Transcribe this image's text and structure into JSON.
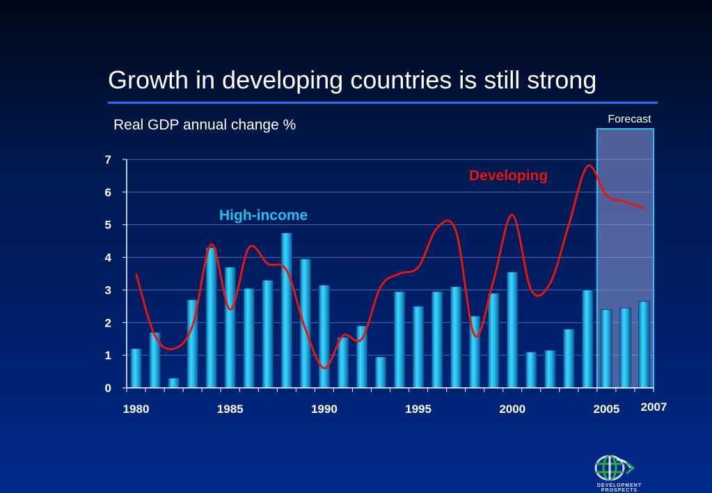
{
  "header": {
    "title": "Growth in developing countries is still strong"
  },
  "chart_data": {
    "type": "bar",
    "title": "Growth in developing countries is still strong",
    "ylabel": "Real GDP annual change %",
    "xlabel": "",
    "ylim": [
      0,
      7
    ],
    "yticks": [
      "0",
      "1",
      "2",
      "3",
      "4",
      "5",
      "6",
      "7"
    ],
    "x": [
      1980,
      1981,
      1982,
      1983,
      1984,
      1985,
      1986,
      1987,
      1988,
      1989,
      1990,
      1991,
      1992,
      1993,
      1994,
      1995,
      1996,
      1997,
      1998,
      1999,
      2000,
      2001,
      2002,
      2003,
      2004,
      2005,
      2006,
      2007
    ],
    "xtick_labels": [
      {
        "year": 1980,
        "label": "1980"
      },
      {
        "year": 1985,
        "label": "1985"
      },
      {
        "year": 1990,
        "label": "1990"
      },
      {
        "year": 1995,
        "label": "1995"
      },
      {
        "year": 2000,
        "label": "2000"
      },
      {
        "year": 2005,
        "label": "2005"
      },
      {
        "year": 2007,
        "label": "2007"
      }
    ],
    "series": [
      {
        "name": "High-income",
        "type": "bar",
        "color": "#22c0f0",
        "values": [
          1.2,
          1.7,
          0.3,
          2.7,
          4.3,
          3.7,
          3.05,
          3.3,
          4.75,
          3.95,
          3.15,
          1.55,
          1.9,
          0.95,
          2.95,
          2.5,
          2.95,
          3.1,
          2.2,
          2.9,
          3.55,
          1.1,
          1.15,
          1.8,
          3.0,
          2.4,
          2.45,
          2.65
        ]
      },
      {
        "name": "Developing",
        "type": "line",
        "color": "#e8160c",
        "values": [
          3.5,
          1.6,
          1.2,
          1.9,
          4.4,
          2.4,
          4.3,
          3.8,
          3.6,
          1.8,
          0.6,
          1.6,
          1.5,
          3.1,
          3.5,
          3.7,
          4.9,
          4.8,
          1.6,
          3.3,
          5.3,
          3.0,
          3.2,
          5.0,
          6.8,
          5.9,
          5.7,
          5.5
        ]
      }
    ],
    "annotations": [
      {
        "text": "High-income",
        "color": "#22c0f0"
      },
      {
        "text": "Developing",
        "color": "#e8160c"
      },
      {
        "text": "Forecast",
        "from": 2005,
        "to": 2007
      }
    ],
    "grid": true
  },
  "logo": {
    "text": "DEVELOPMENT PROSPECTS"
  },
  "colors": {
    "accent_rule": "#2f6cff",
    "forecast_fill": "#6a7ab4",
    "forecast_border": "#29c0ff"
  }
}
